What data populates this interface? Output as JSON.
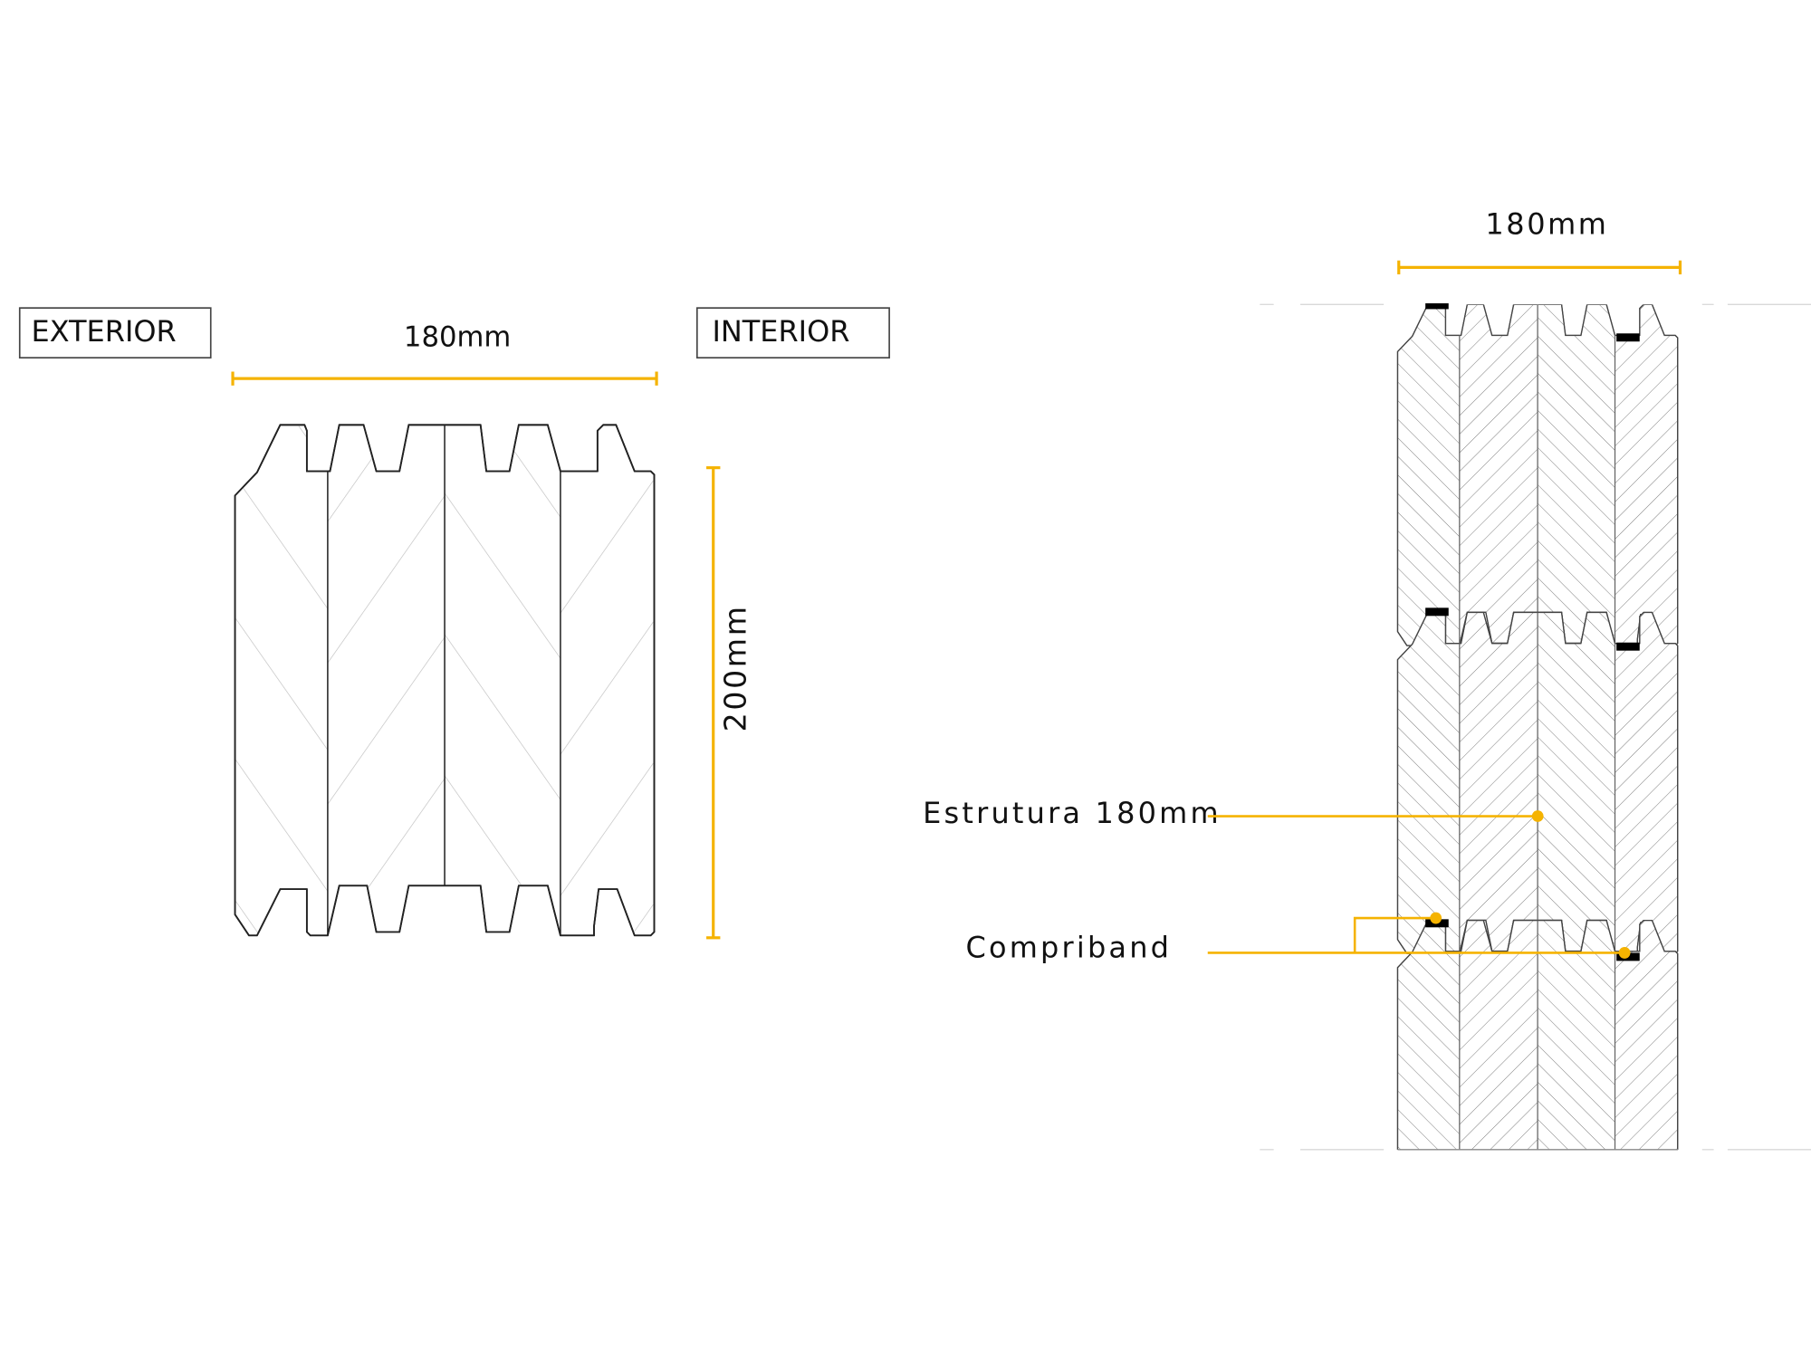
{
  "colors": {
    "accent": "#F5B301",
    "seal": "#000000",
    "hatch": "#9a9a9a"
  },
  "left_section": {
    "exterior_label": "EXTERIOR",
    "interior_label": "INTERIOR",
    "width_dimension": "180mm",
    "height_dimension": "200mm"
  },
  "right_section": {
    "width_dimension": "180mm",
    "callouts": [
      {
        "label": "Estrutura 180mm"
      },
      {
        "label": "Compriband"
      }
    ]
  }
}
